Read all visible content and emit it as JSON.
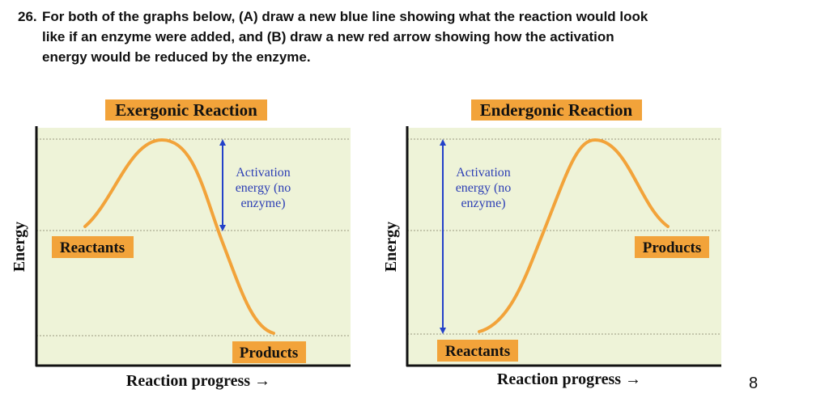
{
  "question": {
    "number": "26.",
    "lines": [
      "For both of the graphs below, (A) draw a new blue line showing what the reaction would look",
      "like if an enzyme were added, and (B) draw a new red arrow showing how the activation",
      "energy would be reduced by the enzyme."
    ]
  },
  "diagrams": [
    {
      "title": "Exergonic Reaction",
      "y_label": "Energy",
      "x_label": "Reaction progress →",
      "arrow_label": [
        "Activation",
        "energy (no",
        "enzyme)"
      ],
      "reactants": "Reactants",
      "products": "Products"
    },
    {
      "title": "Endergonic Reaction",
      "y_label": "Energy",
      "x_label": "Reaction progress →",
      "arrow_label": [
        "Activation",
        "energy (no",
        "enzyme)"
      ],
      "reactants": "Reactants",
      "products": "Products"
    }
  ],
  "page_number": "8"
}
